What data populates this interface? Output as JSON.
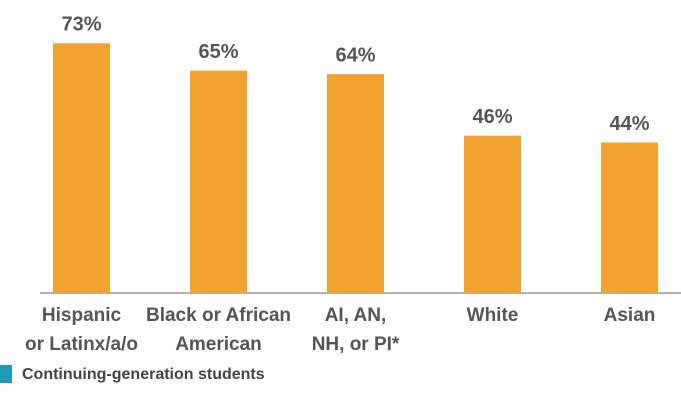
{
  "chart_data": {
    "type": "bar",
    "categories": [
      [
        "Hispanic",
        "or Latinx/a/o"
      ],
      [
        "Black or African",
        "American"
      ],
      [
        "AI, AN,",
        "NH, or PI*"
      ],
      [
        "White"
      ],
      [
        "Asian"
      ]
    ],
    "series": [
      {
        "name": "Continuing-generation students",
        "color": "#f2a230",
        "legend_color": "#1b9bb6",
        "values": [
          73,
          65,
          64,
          46,
          44
        ],
        "value_labels": [
          "73%",
          "65%",
          "64%",
          "46%",
          "44%"
        ]
      }
    ],
    "ylim": [
      0,
      80
    ]
  }
}
